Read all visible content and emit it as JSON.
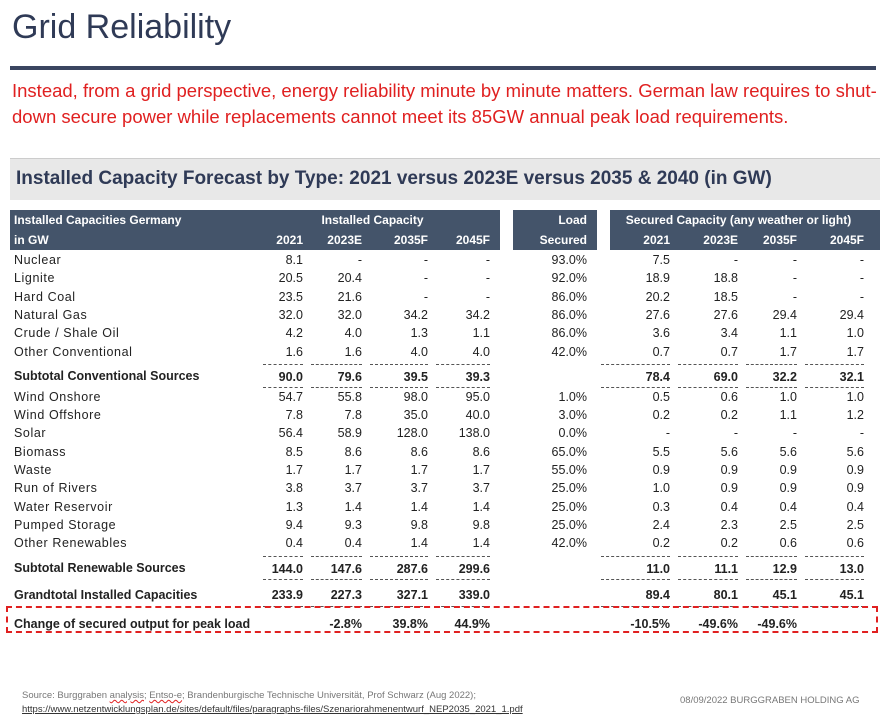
{
  "title": "Grid Reliability",
  "intro": "Instead, from a grid perspective, energy reliability minute by minute matters. German law requires to shut-down secure power while replacements cannot meet its 85GW annual peak load requirements.",
  "table_title": "Installed Capacity Forecast by Type: 2021 versus 2023E versus 2035 & 2040 (in GW)",
  "header": {
    "label1": "Installed Capacities Germany",
    "label2": "in GW",
    "group1": "Installed Capacity",
    "load1": "Load",
    "load2": "Secured",
    "group2": "Secured Capacity (any weather or light)",
    "years": [
      "2021",
      "2023E",
      "2035F",
      "2045F"
    ],
    "years2": [
      "2021",
      "2023E",
      "2035F",
      "2045F"
    ]
  },
  "rows": [
    {
      "type": "n",
      "label": "Nuclear",
      "v": [
        "8.1",
        "-",
        "-",
        "-",
        "93.0%",
        "7.5",
        "-",
        "-",
        "-"
      ]
    },
    {
      "type": "n",
      "label": "Lignite",
      "v": [
        "20.5",
        "20.4",
        "-",
        "-",
        "92.0%",
        "18.9",
        "18.8",
        "-",
        "-"
      ]
    },
    {
      "type": "n",
      "label": "Hard Coal",
      "v": [
        "23.5",
        "21.6",
        "-",
        "-",
        "86.0%",
        "20.2",
        "18.5",
        "-",
        "-"
      ]
    },
    {
      "type": "n",
      "label": "Natural Gas",
      "v": [
        "32.0",
        "32.0",
        "34.2",
        "34.2",
        "86.0%",
        "27.6",
        "27.6",
        "29.4",
        "29.4"
      ]
    },
    {
      "type": "n",
      "label": "Crude / Shale Oil",
      "v": [
        "4.2",
        "4.0",
        "1.3",
        "1.1",
        "86.0%",
        "3.6",
        "3.4",
        "1.1",
        "1.0"
      ]
    },
    {
      "type": "n",
      "label": "Other Conventional",
      "v": [
        "1.6",
        "1.6",
        "4.0",
        "4.0",
        "42.0%",
        "0.7",
        "0.7",
        "1.7",
        "1.7"
      ]
    },
    {
      "type": "sub",
      "label": "Subtotal Conventional Sources",
      "v": [
        "90.0",
        "79.6",
        "39.5",
        "39.3",
        "",
        "78.4",
        "69.0",
        "32.2",
        "32.1"
      ]
    },
    {
      "type": "n",
      "label": "Wind Onshore",
      "v": [
        "54.7",
        "55.8",
        "98.0",
        "95.0",
        "1.0%",
        "0.5",
        "0.6",
        "1.0",
        "1.0"
      ]
    },
    {
      "type": "n",
      "label": "Wind Offshore",
      "v": [
        "7.8",
        "7.8",
        "35.0",
        "40.0",
        "3.0%",
        "0.2",
        "0.2",
        "1.1",
        "1.2"
      ]
    },
    {
      "type": "n",
      "label": "Solar",
      "v": [
        "56.4",
        "58.9",
        "128.0",
        "138.0",
        "0.0%",
        "-",
        "-",
        "-",
        "-"
      ]
    },
    {
      "type": "n",
      "label": "Biomass",
      "v": [
        "8.5",
        "8.6",
        "8.6",
        "8.6",
        "65.0%",
        "5.5",
        "5.6",
        "5.6",
        "5.6"
      ]
    },
    {
      "type": "n",
      "label": "Waste",
      "v": [
        "1.7",
        "1.7",
        "1.7",
        "1.7",
        "55.0%",
        "0.9",
        "0.9",
        "0.9",
        "0.9"
      ]
    },
    {
      "type": "n",
      "label": "Run of Rivers",
      "v": [
        "3.8",
        "3.7",
        "3.7",
        "3.7",
        "25.0%",
        "1.0",
        "0.9",
        "0.9",
        "0.9"
      ]
    },
    {
      "type": "n",
      "label": "Water Reservoir",
      "v": [
        "1.3",
        "1.4",
        "1.4",
        "1.4",
        "25.0%",
        "0.3",
        "0.4",
        "0.4",
        "0.4"
      ]
    },
    {
      "type": "n",
      "label": "Pumped Storage",
      "v": [
        "9.4",
        "9.3",
        "9.8",
        "9.8",
        "25.0%",
        "2.4",
        "2.3",
        "2.5",
        "2.5"
      ]
    },
    {
      "type": "n",
      "label": "Other Renewables",
      "v": [
        "0.4",
        "0.4",
        "1.4",
        "1.4",
        "42.0%",
        "0.2",
        "0.2",
        "0.6",
        "0.6"
      ]
    },
    {
      "type": "sub",
      "label": "Subtotal Renewable Sources",
      "v": [
        "144.0",
        "147.6",
        "287.6",
        "299.6",
        "",
        "11.0",
        "11.1",
        "12.9",
        "13.0"
      ]
    },
    {
      "type": "sub grand",
      "label": "Grandtotal Installed Capacities",
      "v": [
        "233.9",
        "227.3",
        "327.1",
        "339.0",
        "",
        "89.4",
        "80.1",
        "45.1",
        "45.1"
      ]
    },
    {
      "type": "chg",
      "label": "Change of secured output for peak load",
      "v": [
        "",
        "-2.8%",
        "39.8%",
        "44.9%",
        "",
        "-10.5%",
        "-49.6%",
        "-49.6%",
        ""
      ]
    }
  ],
  "source": {
    "prefix": "Source: Burggraben ",
    "analysis": "analysis",
    "mid": "; ",
    "entso": "Entso-e",
    "rest": "; Brandenburgische Technische Universität, Prof Schwarz (Aug 2022);",
    "url": "https://www.netzentwicklungsplan.de/sites/default/files/paragraphs-files/Szenariorahmenentwurf_NEP2035_2021_1.pdf"
  },
  "footer": "08/09/2022  BURGGRABEN HOLDING AG"
}
